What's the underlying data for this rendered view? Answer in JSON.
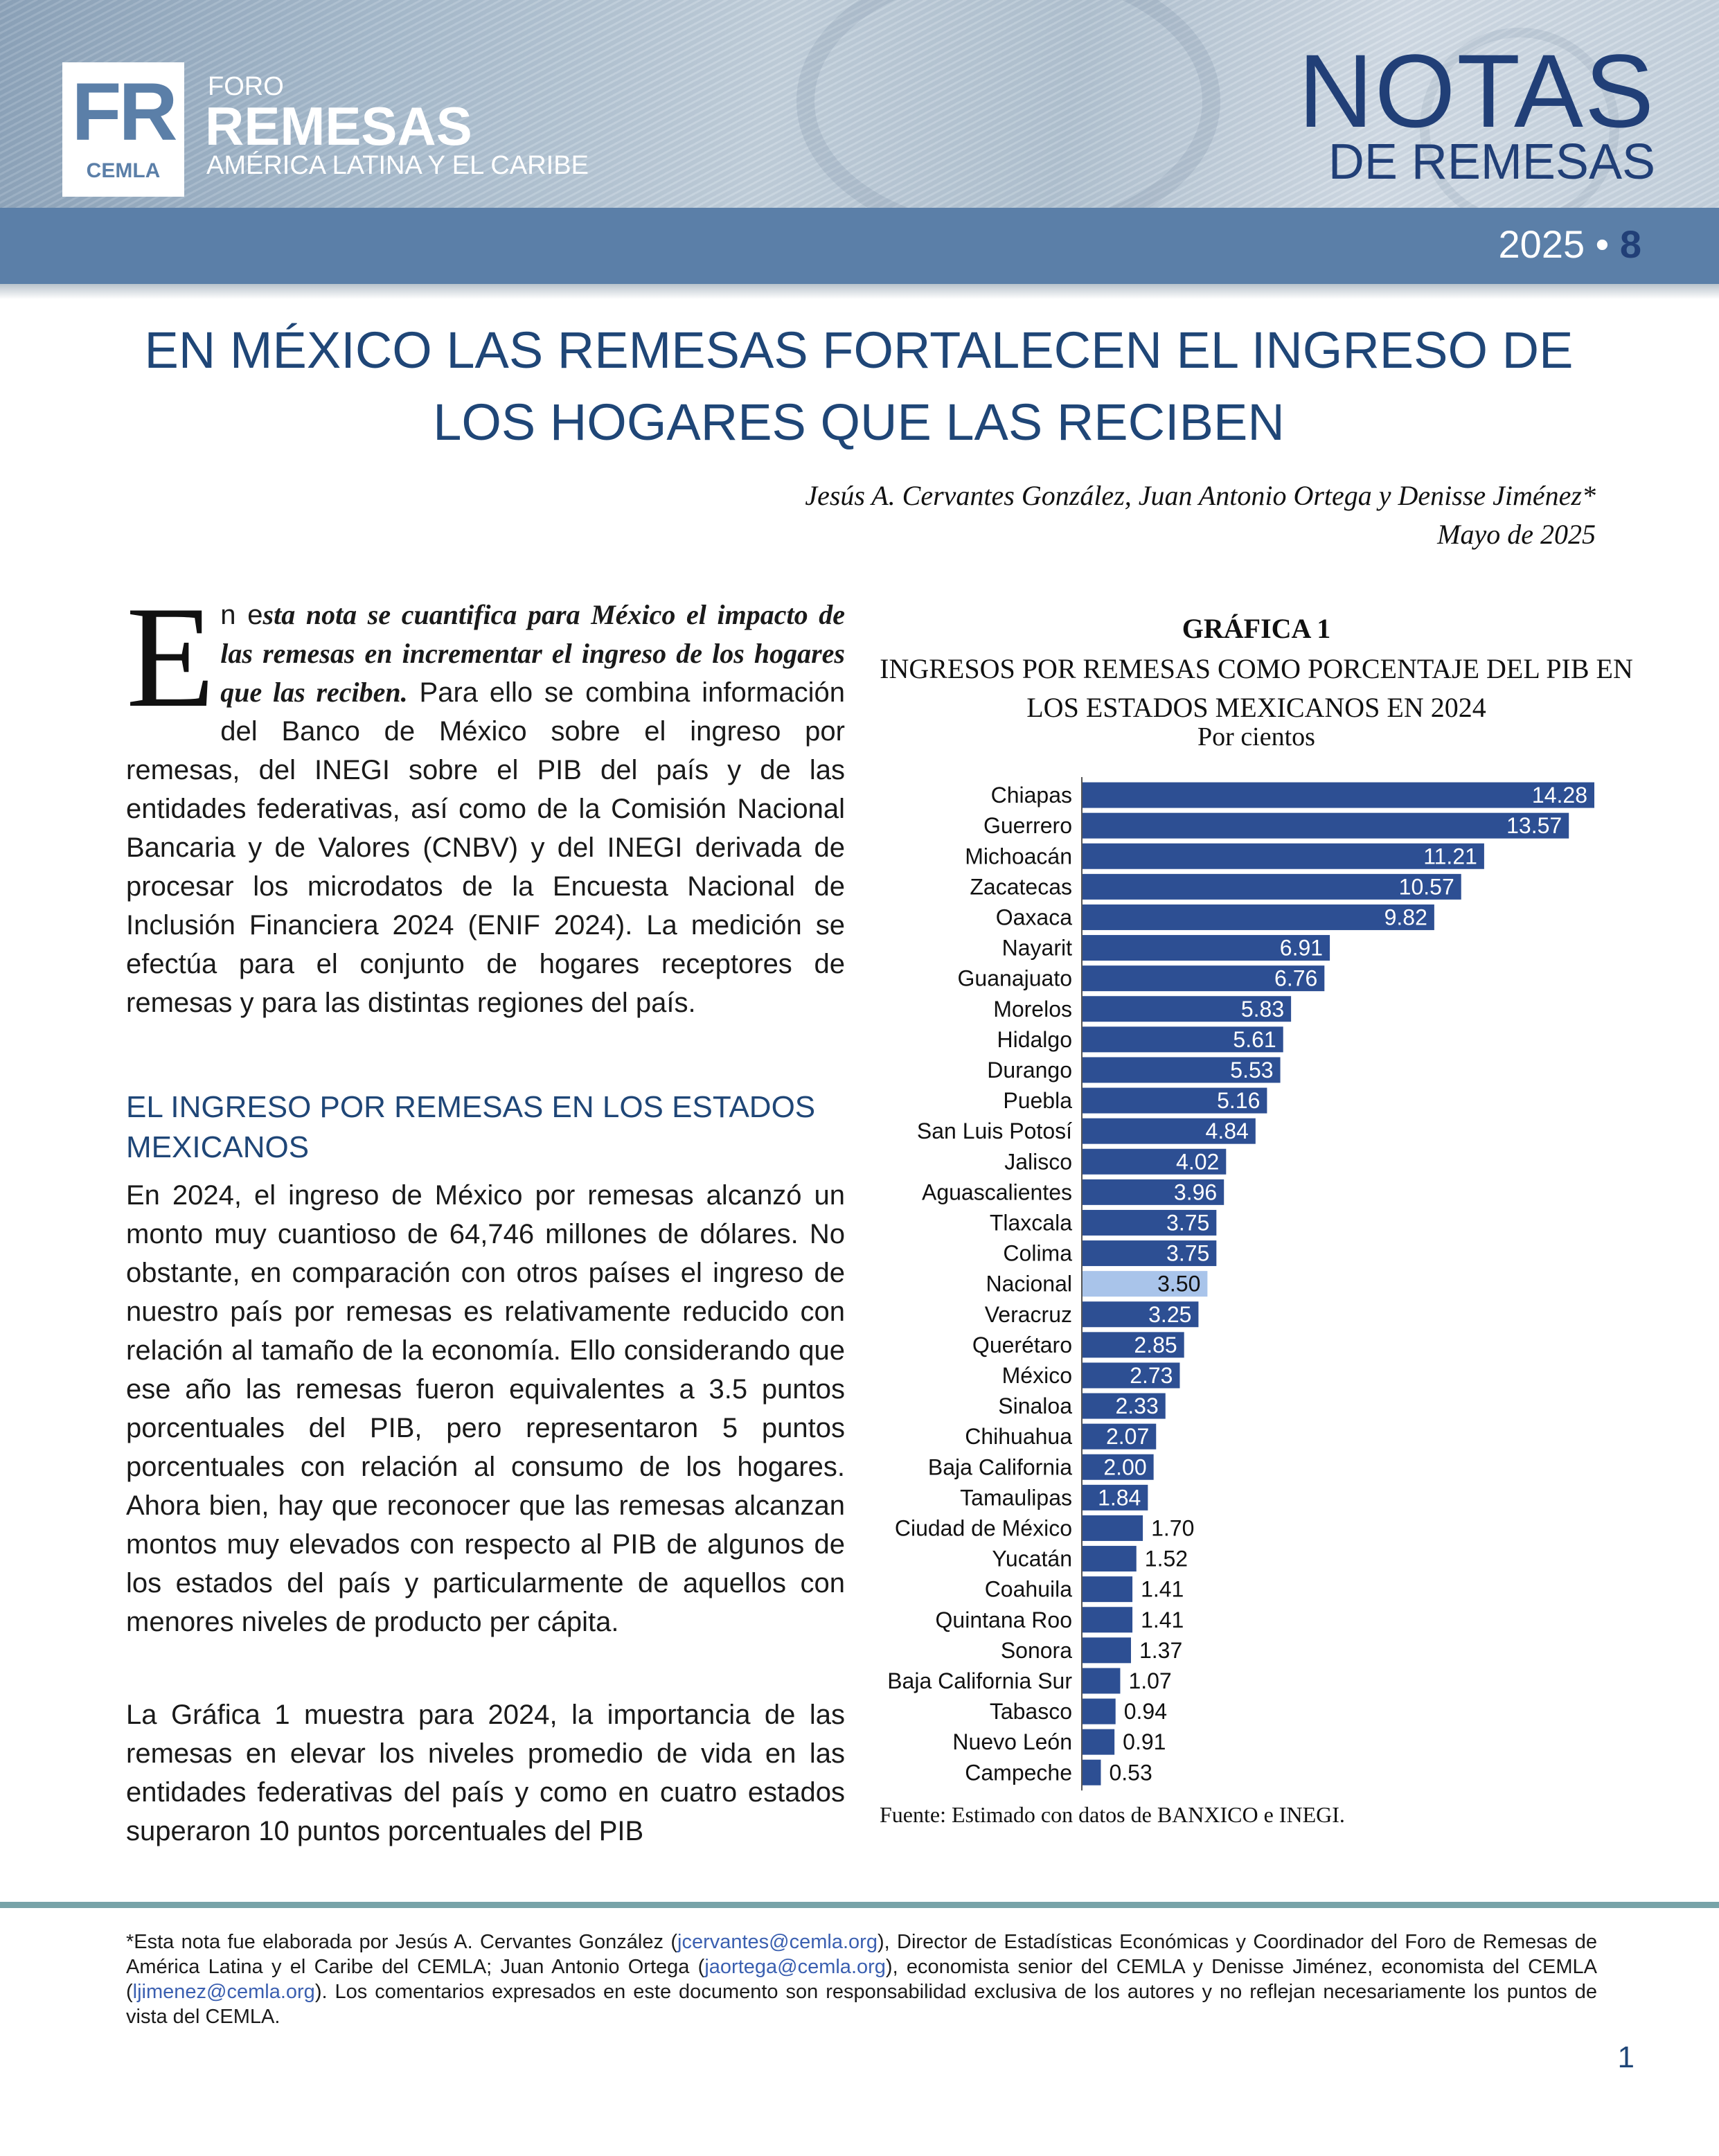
{
  "header": {
    "logo_fr": "FR",
    "logo_cemla": "CEMLA",
    "logo_foro": "FORO",
    "logo_remesas": "REMESAS",
    "logo_region": "AMÉRICA LATINA Y EL CARIBE",
    "notas": "NOTAS",
    "de_remesas": "DE REMESAS",
    "issue_year": "2025 •",
    "issue_number": "8"
  },
  "title": "EN MÉXICO LAS REMESAS FORTALECEN EL INGRESO DE LOS HOGARES QUE LAS RECIBEN",
  "authors": "Jesús A. Cervantes González, Juan Antonio Ortega y Denisse Jiménez*",
  "date": "Mayo de 2025",
  "intro": {
    "dropcap": "E",
    "lead_plain": "n e",
    "lead_italic": "sta nota se cuantifica para México el impacto de las remesas en incrementar el ingreso de los hogares que las reciben.",
    "rest": " Para ello se combina información del Banco de México sobre el ingreso por remesas, del INEGI sobre el PIB del país y de las entidades federativas, así como de la Comisión Nacional Bancaria y de Valores (CNBV) y del INEGI derivada de procesar los microdatos de la Encuesta Nacional de Inclusión Financiera 2024 (ENIF 2024). La medición se efectúa para el conjunto de hogares receptores de remesas y para las distintas regiones del país."
  },
  "section_heading": "EL INGRESO POR REMESAS EN LOS ESTADOS MEXICANOS",
  "paragraph_1": "En 2024, el ingreso de México por remesas alcanzó un monto muy cuantioso de 64,746 millones de dólares. No obstante, en comparación con otros países el ingreso de nuestro país por remesas es relativamente reducido con relación al tamaño de la economía. Ello considerando que ese año las remesas fueron equivalentes a 3.5 puntos porcentuales del PIB, pero representaron 5 puntos porcentuales con relación al consumo de los hogares. Ahora bien, hay que reconocer que las remesas alcanzan montos muy elevados con respecto al PIB de algunos de los estados del país y particularmente de aquellos con menores niveles de producto per cápita.",
  "paragraph_2": "La Gráfica 1 muestra para 2024, la importancia de las remesas en elevar los niveles promedio de vida en las entidades federativas del país y como en cuatro estados superaron 10 puntos porcentuales del PIB",
  "chart_header": {
    "label": "GRÁFICA 1",
    "title": "INGRESOS POR REMESAS COMO PORCENTAJE DEL PIB EN LOS ESTADOS MEXICANOS EN 2024",
    "unit": "Por cientos"
  },
  "chart_data": {
    "type": "bar",
    "orientation": "horizontal",
    "title": "INGRESOS POR REMESAS COMO PORCENTAJE DEL PIB EN LOS ESTADOS MEXICANOS EN 2024",
    "ylabel": "Por cientos",
    "categories": [
      "Chiapas",
      "Guerrero",
      "Michoacán",
      "Zacatecas",
      "Oaxaca",
      "Nayarit",
      "Guanajuato",
      "Morelos",
      "Hidalgo",
      "Durango",
      "Puebla",
      "San Luis Potosí",
      "Jalisco",
      "Aguascalientes",
      "Tlaxcala",
      "Colima",
      "Nacional",
      "Veracruz",
      "Querétaro",
      "México",
      "Sinaloa",
      "Chihuahua",
      "Baja California",
      "Tamaulipas",
      "Ciudad de México",
      "Yucatán",
      "Coahuila",
      "Quintana Roo",
      "Sonora",
      "Baja California Sur",
      "Tabasco",
      "Nuevo León",
      "Campeche"
    ],
    "values": [
      14.28,
      13.57,
      11.21,
      10.57,
      9.82,
      6.91,
      6.76,
      5.83,
      5.61,
      5.53,
      5.16,
      4.84,
      4.02,
      3.96,
      3.75,
      3.75,
      3.5,
      3.25,
      2.85,
      2.73,
      2.33,
      2.07,
      2.0,
      1.84,
      1.7,
      1.52,
      1.41,
      1.41,
      1.37,
      1.07,
      0.94,
      0.91,
      0.53
    ],
    "labels": [
      "14.28",
      "13.57",
      "11.21",
      "10.57",
      "9.82",
      "6.91",
      "6.76",
      "5.83",
      "5.61",
      "5.53",
      "5.16",
      "4.84",
      "4.02",
      "3.96",
      "3.75",
      "3.75",
      "3.50",
      "3.25",
      "2.85",
      "2.73",
      "2.33",
      "2.07",
      "2.00",
      "1.84",
      "1.70",
      "1.52",
      "1.41",
      "1.41",
      "1.37",
      "1.07",
      "0.94",
      "0.91",
      "0.53"
    ],
    "highlight_category": "Nacional",
    "colors": {
      "bar": "#2d4f93",
      "highlight": "#a9c4ea"
    },
    "xlim": [
      0,
      14.28
    ],
    "grid": false,
    "legend": "none"
  },
  "source": "Fuente: Estimado con datos de BANXICO e INEGI.",
  "footnote": {
    "p1": "*Esta nota fue elaborada por Jesús A. Cervantes González (",
    "email1": "jcervantes@cemla.org",
    "p2": "), Director de Estadísticas Económicas y Coordinador del Foro de Remesas de América Latina y el Caribe del CEMLA; Juan Antonio Ortega (",
    "email2": "jaortega@cemla.org",
    "p3": "), economista senior del CEMLA y  Denisse Jiménez, economista del CEMLA (",
    "email3": "ljimenez@cemla.org",
    "p4": "). Los comentarios expresados en este documento son responsabilidad exclusiva de los autores y no reflejan necesariamente los puntos de vista del CEMLA."
  },
  "page_number": "1"
}
